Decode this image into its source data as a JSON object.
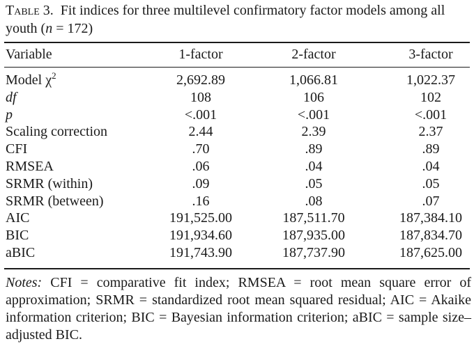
{
  "caption": {
    "table_number": "Table 3.",
    "title_part1": "Fit indices for three multilevel confirmatory factor models among all youth (",
    "n_symbol": "n",
    "title_part2": " = 172)"
  },
  "columns": [
    "Variable",
    "1-factor",
    "2-factor",
    "3-factor"
  ],
  "rows": [
    {
      "label": "Model χ",
      "label_sup": "2",
      "values": [
        "2,692.89",
        "1,066.81",
        "1,022.37"
      ]
    },
    {
      "label": "df",
      "italic": true,
      "values": [
        "108",
        "106",
        "102"
      ]
    },
    {
      "label": "p",
      "italic": true,
      "values": [
        "<.001",
        "<.001",
        "<.001"
      ]
    },
    {
      "label": "Scaling correction",
      "values": [
        "2.44",
        "2.39",
        "2.37"
      ]
    },
    {
      "label": "CFI",
      "values": [
        ".70",
        ".89",
        ".89"
      ]
    },
    {
      "label": "RMSEA",
      "values": [
        ".06",
        ".04",
        ".04"
      ]
    },
    {
      "label": "SRMR (within)",
      "values": [
        ".09",
        ".05",
        ".05"
      ]
    },
    {
      "label": "SRMR (between)",
      "values": [
        ".16",
        ".08",
        ".07"
      ]
    },
    {
      "label": "AIC",
      "values": [
        "191,525.00",
        "187,511.70",
        "187,384.10"
      ]
    },
    {
      "label": "BIC",
      "values": [
        "191,934.60",
        "187,935.00",
        "187,834.70"
      ]
    },
    {
      "label": "aBIC",
      "values": [
        "191,743.90",
        "187,737.90",
        "187,625.00"
      ]
    }
  ],
  "notes": {
    "label": "Notes:",
    "text": " CFI = comparative fit index; RMSEA = root mean square error of approximation; SRMR = standardized root mean squared residual; AIC = Akaike information criterion; BIC = Bayesian information criterion; aBIC = sample size–adjusted BIC."
  }
}
